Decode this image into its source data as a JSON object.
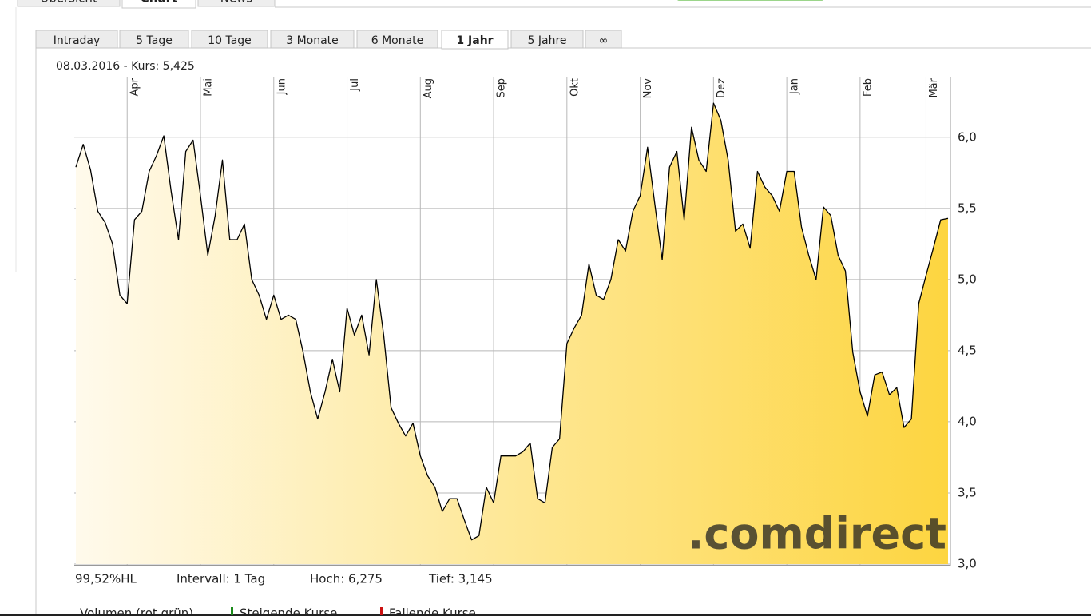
{
  "top_tabs": [
    "Übersicht",
    "Chart",
    "News"
  ],
  "active_top_tab": "Chart",
  "period_tabs": [
    "Intraday",
    "5 Tage",
    "10 Tage",
    "3 Monate",
    "6 Monate",
    "1 Jahr",
    "5 Jahre",
    "∞"
  ],
  "active_period": "1 Jahr",
  "header_line": "08.03.2016  -  Kurs: 5,425",
  "chart_data": {
    "type": "area",
    "color": "#000000",
    "area_gradient": [
      "#fffaec",
      "#fdd540"
    ],
    "categories": [
      null,
      null,
      null,
      null,
      null,
      null,
      null,
      "Apr",
      null,
      null,
      null,
      null,
      null,
      null,
      null,
      null,
      null,
      "Mai",
      null,
      null,
      null,
      null,
      null,
      null,
      null,
      null,
      null,
      "Jun",
      null,
      null,
      null,
      null,
      null,
      null,
      null,
      null,
      null,
      "Jul",
      null,
      null,
      null,
      null,
      null,
      null,
      null,
      null,
      null,
      "Aug",
      null,
      null,
      null,
      null,
      null,
      null,
      null,
      null,
      null,
      "Sep",
      null,
      null,
      null,
      null,
      null,
      null,
      null,
      null,
      null,
      "Okt",
      null,
      null,
      null,
      null,
      null,
      null,
      null,
      null,
      null,
      "Nov",
      null,
      null,
      null,
      null,
      null,
      null,
      null,
      null,
      null,
      "Dez",
      null,
      null,
      null,
      null,
      null,
      null,
      null,
      null,
      null,
      "Jan",
      null,
      null,
      null,
      null,
      null,
      null,
      null,
      null,
      null,
      "Feb",
      null,
      null,
      null,
      null,
      null,
      null,
      null,
      null,
      "Mär",
      null,
      null,
      null
    ],
    "values": [
      5.79,
      5.95,
      5.77,
      5.48,
      5.4,
      5.25,
      4.89,
      4.83,
      5.42,
      5.48,
      5.76,
      5.87,
      6.01,
      5.62,
      5.28,
      5.9,
      5.98,
      5.59,
      5.17,
      5.45,
      5.84,
      5.28,
      5.28,
      5.39,
      5.0,
      4.89,
      4.72,
      4.89,
      4.72,
      4.75,
      4.72,
      4.49,
      4.21,
      4.02,
      4.21,
      4.44,
      4.21,
      4.8,
      4.61,
      4.75,
      4.47,
      5.0,
      4.61,
      4.1,
      3.99,
      3.9,
      3.99,
      3.76,
      3.62,
      3.54,
      3.37,
      3.46,
      3.46,
      3.31,
      3.17,
      3.2,
      3.54,
      3.43,
      3.76,
      3.76,
      3.76,
      3.79,
      3.85,
      3.46,
      3.43,
      3.82,
      3.88,
      4.55,
      4.66,
      4.75,
      5.11,
      4.89,
      4.86,
      5.0,
      5.28,
      5.2,
      5.48,
      5.59,
      5.93,
      5.53,
      5.14,
      5.79,
      5.9,
      5.42,
      6.07,
      5.84,
      5.76,
      6.24,
      6.12,
      5.84,
      5.34,
      5.39,
      5.22,
      5.76,
      5.65,
      5.59,
      5.48,
      5.76,
      5.76,
      5.37,
      5.17,
      5.0,
      5.51,
      5.45,
      5.17,
      5.06,
      4.49,
      4.21,
      4.04,
      4.33,
      4.35,
      4.19,
      4.24,
      3.96,
      4.02,
      4.83,
      5.03,
      5.22,
      5.42,
      5.43
    ],
    "ylim": [
      3.0,
      6.42
    ],
    "yticks": [
      {
        "value": 3,
        "label": "3,0"
      },
      {
        "value": 3.5,
        "label": "3,5"
      },
      {
        "value": 4,
        "label": "4,0"
      },
      {
        "value": 4.5,
        "label": "4,5"
      },
      {
        "value": 5,
        "label": "5,0"
      },
      {
        "value": 5.5,
        "label": "5,5"
      },
      {
        "value": 6,
        "label": "6,0"
      }
    ],
    "grid": true,
    "watermark": ".comdirect"
  },
  "stats": [
    "99,52%HL",
    "Intervall: 1 Tag",
    "Hoch:  6,275",
    "Tief:  3,145"
  ],
  "legend": [
    "Volumen (rot grün)",
    "Steigende Kurse",
    "Fallende Kurse"
  ]
}
